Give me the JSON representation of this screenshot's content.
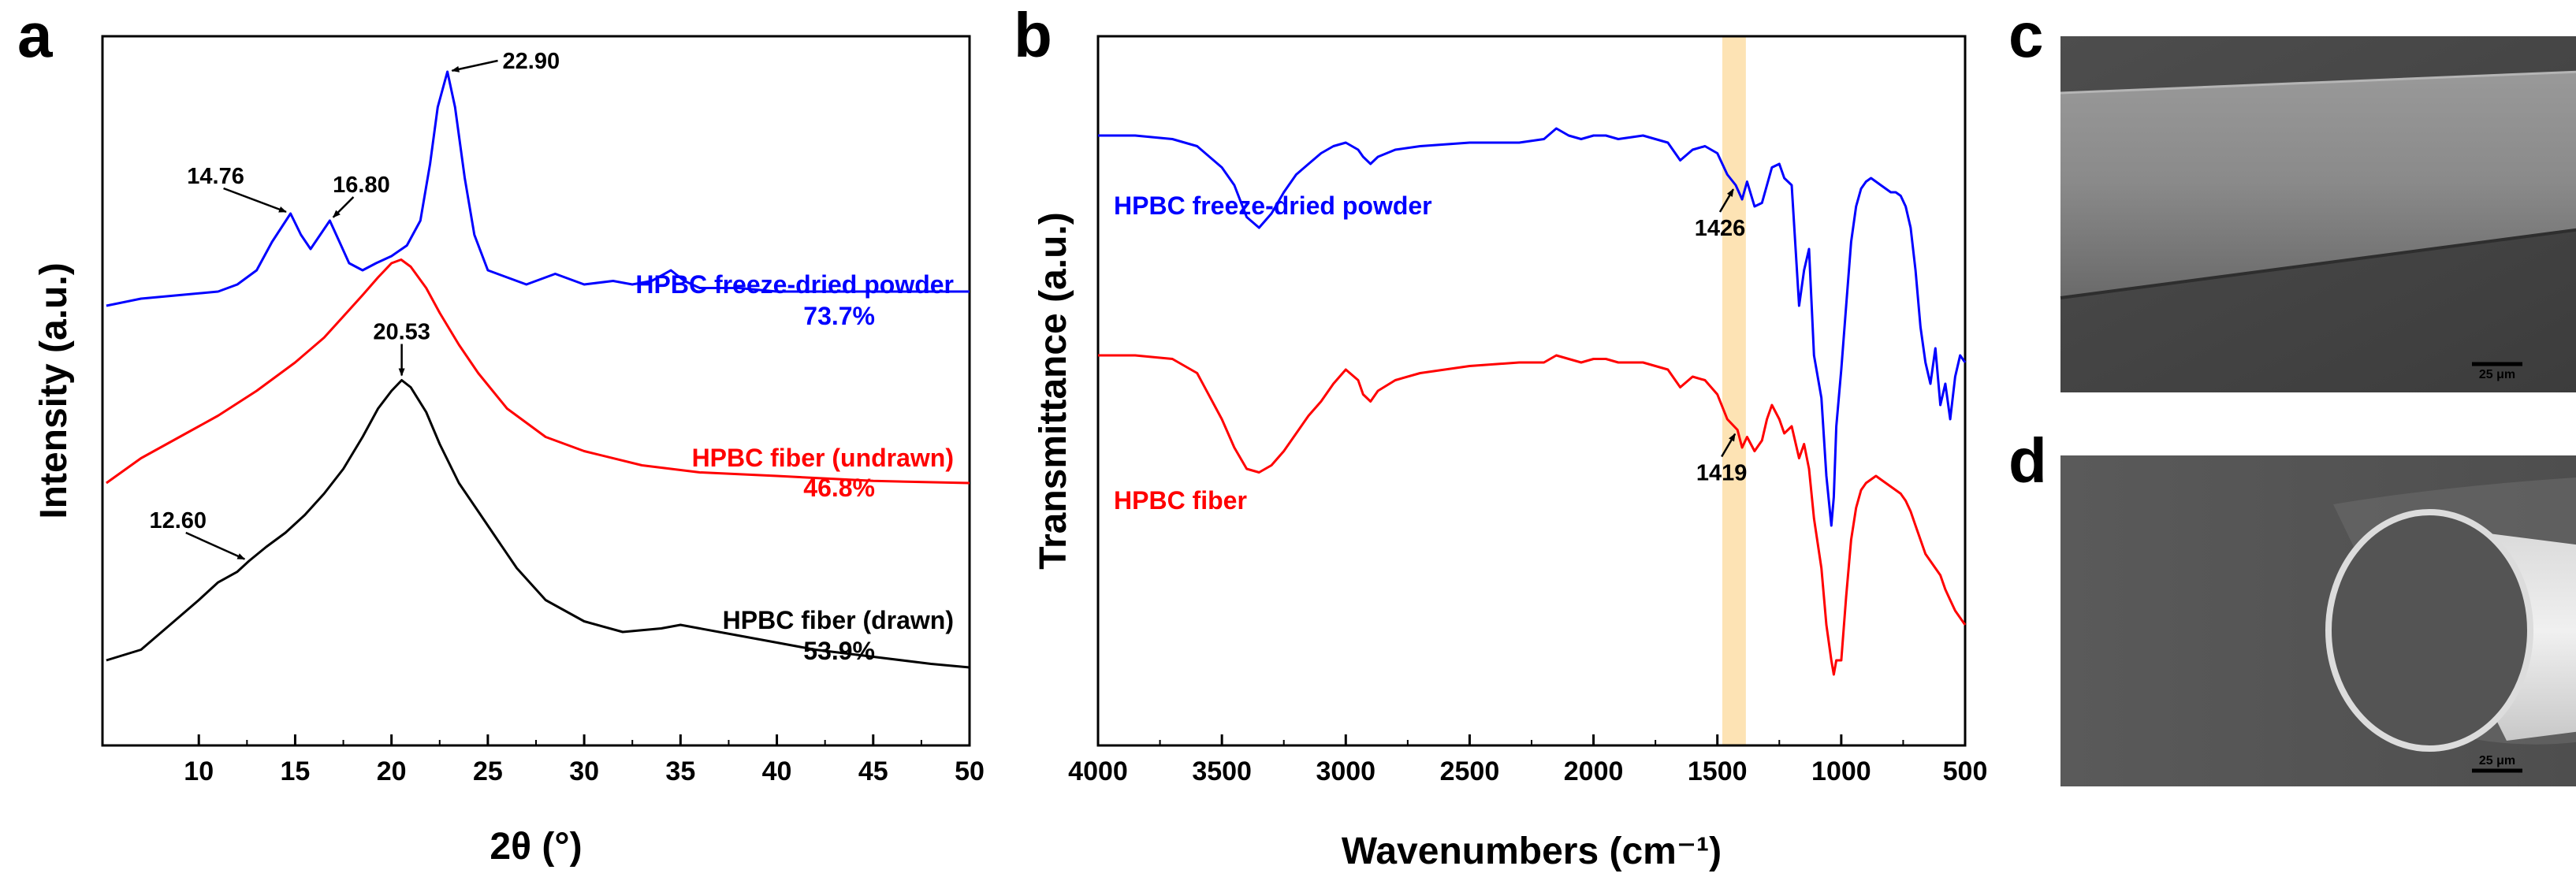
{
  "panels": {
    "a": "a",
    "b": "b",
    "c": "c",
    "d": "d"
  },
  "chart_data": [
    {
      "panel": "a",
      "type": "line",
      "title": "",
      "xlabel": "2θ (°)",
      "ylabel": "Intensity (a.u.)",
      "xlim": [
        5,
        50
      ],
      "ylim": [
        0,
        100
      ],
      "yticks_shown": false,
      "xticks": [
        10,
        15,
        20,
        25,
        30,
        35,
        40,
        45,
        50
      ],
      "series": [
        {
          "name": "HPBC freeze-dried powder",
          "label": "HPBC freeze-dried powder",
          "crystallinity": "73.7%",
          "color": "#0000ff",
          "x": [
            5.2,
            7,
            9,
            11,
            12,
            13,
            13.8,
            14.76,
            15.3,
            15.8,
            16.3,
            16.8,
            17.3,
            17.8,
            18.5,
            19.2,
            20,
            20.8,
            21.5,
            22,
            22.4,
            22.9,
            23.3,
            23.8,
            24.3,
            25,
            26,
            27,
            28.5,
            30,
            31.5,
            32.5,
            33.5,
            34.5,
            35.2,
            36,
            38,
            40,
            42,
            45,
            48,
            50
          ],
          "y": [
            62,
            63,
            63.5,
            64,
            65,
            67,
            71,
            75,
            72,
            70,
            72,
            74,
            71,
            68,
            67,
            68,
            69,
            70.5,
            74,
            82,
            90,
            95,
            90,
            80,
            72,
            67,
            66,
            65,
            66.5,
            65,
            65.5,
            65,
            65.5,
            67,
            65.5,
            64.5,
            64.5,
            64,
            64,
            64,
            64,
            64
          ]
        },
        {
          "name": "HPBC fiber (undrawn)",
          "label": "HPBC fiber (undrawn)",
          "crystallinity": "46.8%",
          "color": "#ff0000",
          "x": [
            5.2,
            7,
            9,
            11,
            13,
            15,
            16.5,
            17.5,
            18.5,
            19.3,
            20,
            20.5,
            21,
            21.8,
            22.5,
            23.5,
            24.5,
            26,
            28,
            30,
            33,
            36,
            40,
            45,
            50
          ],
          "y": [
            37,
            40.5,
            43.5,
            46.5,
            50,
            54,
            57.5,
            60.5,
            63.5,
            66,
            68,
            68.5,
            67.5,
            64.5,
            61,
            56.5,
            52.5,
            47.5,
            43.5,
            41.5,
            39.5,
            38.5,
            38,
            37.3,
            37
          ]
        },
        {
          "name": "HPBC fiber (drawn)",
          "label": "HPBC fiber (drawn)",
          "crystallinity": "53.9%",
          "color": "#000000",
          "x": [
            5.2,
            7,
            8.5,
            10,
            11,
            12,
            12.6,
            13.5,
            14.5,
            15.5,
            16.5,
            17.5,
            18.5,
            19.3,
            20,
            20.53,
            21,
            21.8,
            22.5,
            23.5,
            24.5,
            25.5,
            26.5,
            28,
            30,
            32,
            34,
            35,
            36,
            38,
            40,
            42,
            45,
            48,
            50
          ],
          "y": [
            12,
            13.5,
            17,
            20.5,
            23,
            24.5,
            26,
            28,
            30,
            32.5,
            35.5,
            39,
            43.5,
            47.5,
            50,
            51.5,
            50.5,
            47,
            42.5,
            37,
            33,
            29,
            25,
            20.5,
            17.5,
            16,
            16.5,
            17,
            16.5,
            15.5,
            14.5,
            13.5,
            12.5,
            11.5,
            11
          ]
        }
      ],
      "annotations": [
        {
          "label": "22.90",
          "x": 22.9,
          "series": 0
        },
        {
          "label": "14.76",
          "x": 14.76,
          "series": 0
        },
        {
          "label": "16.80",
          "x": 16.8,
          "series": 0
        },
        {
          "label": "20.53",
          "x": 20.53,
          "series": 2
        },
        {
          "label": "12.60",
          "x": 12.6,
          "series": 2
        }
      ]
    },
    {
      "panel": "b",
      "type": "line",
      "title": "",
      "xlabel": "Wavenumbers (cm⁻¹)",
      "ylabel": "Transmittance (a.u.)",
      "xlim": [
        4000,
        500
      ],
      "ylim": [
        0,
        100
      ],
      "yticks_shown": false,
      "xticks": [
        4000,
        3500,
        3000,
        2500,
        2000,
        1500,
        1000,
        500
      ],
      "highlight_band": [
        1480,
        1385
      ],
      "series": [
        {
          "name": "HPBC freeze-dried powder",
          "label": "HPBC freeze-dried powder",
          "color": "#0000ff",
          "x": [
            4000,
            3850,
            3700,
            3600,
            3500,
            3450,
            3400,
            3350,
            3300,
            3250,
            3200,
            3150,
            3100,
            3050,
            3000,
            2950,
            2930,
            2900,
            2870,
            2800,
            2700,
            2500,
            2300,
            2200,
            2150,
            2100,
            2050,
            2000,
            1950,
            1900,
            1800,
            1750,
            1700,
            1650,
            1600,
            1550,
            1500,
            1460,
            1426,
            1400,
            1380,
            1350,
            1320,
            1300,
            1280,
            1250,
            1230,
            1200,
            1170,
            1150,
            1130,
            1110,
            1080,
            1060,
            1040,
            1030,
            1020,
            1000,
            980,
            960,
            940,
            920,
            900,
            880,
            860,
            840,
            820,
            800,
            780,
            760,
            740,
            720,
            700,
            680,
            660,
            640,
            620,
            600,
            580,
            560,
            540,
            520,
            500
          ],
          "y": [
            86,
            86,
            85.5,
            84.5,
            81.5,
            79,
            74.5,
            73,
            75,
            78,
            80.5,
            82,
            83.5,
            84.5,
            85,
            84,
            83,
            82,
            83,
            84,
            84.5,
            85,
            85,
            85.5,
            87,
            86,
            85.5,
            86,
            86,
            85.5,
            86,
            85.5,
            85,
            82.5,
            84,
            84.5,
            83.5,
            80.5,
            79,
            77,
            79.5,
            76,
            76.5,
            79,
            81.5,
            82,
            80,
            79,
            62,
            67,
            70,
            55,
            49,
            38,
            31,
            35,
            45,
            53,
            62,
            71,
            76,
            78.5,
            79.5,
            80,
            79.5,
            79,
            78.5,
            78,
            78,
            77.5,
            76,
            73,
            67,
            59,
            54,
            51,
            56,
            48,
            51,
            46,
            52,
            55,
            54
          ]
        },
        {
          "name": "HPBC fiber",
          "label": "HPBC fiber",
          "color": "#ff0000",
          "x": [
            4000,
            3850,
            3700,
            3600,
            3500,
            3450,
            3400,
            3350,
            3300,
            3250,
            3200,
            3150,
            3100,
            3050,
            3000,
            2950,
            2930,
            2900,
            2870,
            2800,
            2700,
            2500,
            2300,
            2200,
            2150,
            2100,
            2050,
            2000,
            1950,
            1900,
            1800,
            1750,
            1700,
            1650,
            1600,
            1550,
            1500,
            1460,
            1419,
            1400,
            1380,
            1350,
            1320,
            1300,
            1280,
            1250,
            1230,
            1200,
            1170,
            1150,
            1130,
            1110,
            1080,
            1060,
            1040,
            1030,
            1020,
            1000,
            980,
            960,
            940,
            920,
            900,
            880,
            860,
            840,
            820,
            800,
            780,
            760,
            740,
            720,
            700,
            680,
            660,
            640,
            620,
            600,
            580,
            560,
            540,
            520,
            500
          ],
          "y": [
            55,
            55,
            54.5,
            52.5,
            46,
            42,
            39,
            38.5,
            39.5,
            41.5,
            44,
            46.5,
            48.5,
            51,
            53,
            51.5,
            49.5,
            48.5,
            50,
            51.5,
            52.5,
            53.5,
            54,
            54,
            55,
            54.5,
            54,
            54.5,
            54.5,
            54,
            54,
            53.5,
            53,
            50.5,
            52,
            51.5,
            49.5,
            46,
            44.5,
            42,
            43.5,
            41.5,
            43,
            46,
            48,
            46,
            44,
            45,
            40.5,
            42.5,
            39,
            32,
            25,
            17,
            12,
            10,
            12,
            12,
            21,
            29,
            33.5,
            36,
            37,
            37.5,
            38,
            37.5,
            37,
            36.5,
            36,
            35.5,
            34.5,
            33,
            31,
            29,
            27,
            26,
            25,
            24,
            22,
            20.5,
            19,
            18,
            17
          ]
        }
      ],
      "annotations": [
        {
          "label": "1426",
          "x": 1426,
          "series": 0
        },
        {
          "label": "1419",
          "x": 1419,
          "series": 1
        }
      ]
    }
  ],
  "sem_images": [
    {
      "panel": "c",
      "scale_bar": "25 μm",
      "description_name": "fiber-side-view"
    },
    {
      "panel": "d",
      "scale_bar": "25 μm",
      "description_name": "fiber-cross-section"
    }
  ],
  "colors": {
    "blue": "#0000ff",
    "red": "#ff0000",
    "black": "#000000",
    "band": "#fde3b4"
  }
}
